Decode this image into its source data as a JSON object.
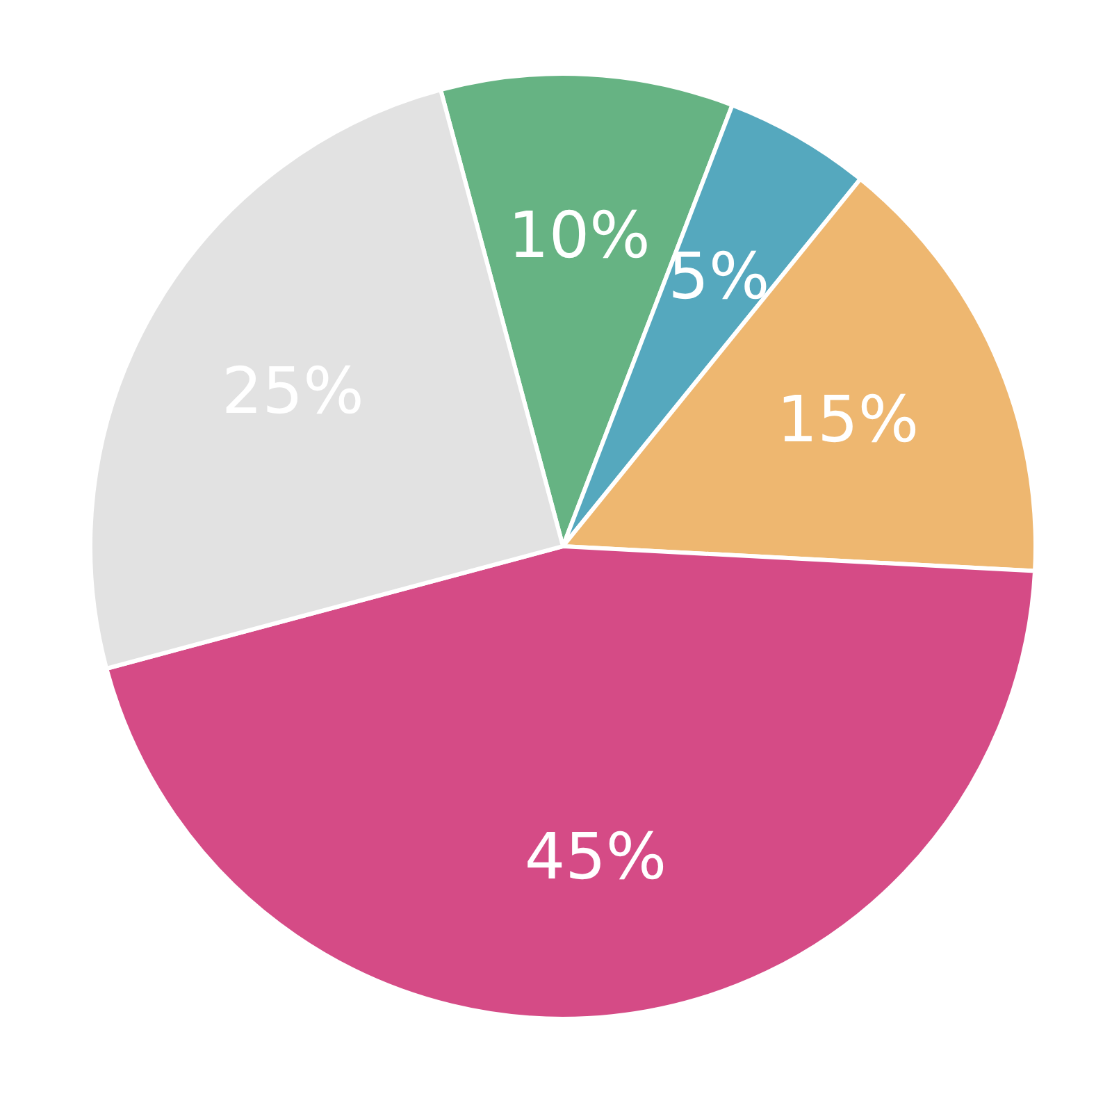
{
  "chart_data": {
    "type": "pie",
    "categories": [
      null,
      null,
      null,
      null,
      null
    ],
    "values": [
      10,
      5,
      15,
      45,
      25
    ],
    "colors": [
      "#66b383",
      "#55a8be",
      "#eeb770",
      "#d54b86",
      "#e2e2e2"
    ],
    "value_labels": [
      "10%",
      "5%",
      "15%",
      "45%",
      "25%"
    ]
  }
}
